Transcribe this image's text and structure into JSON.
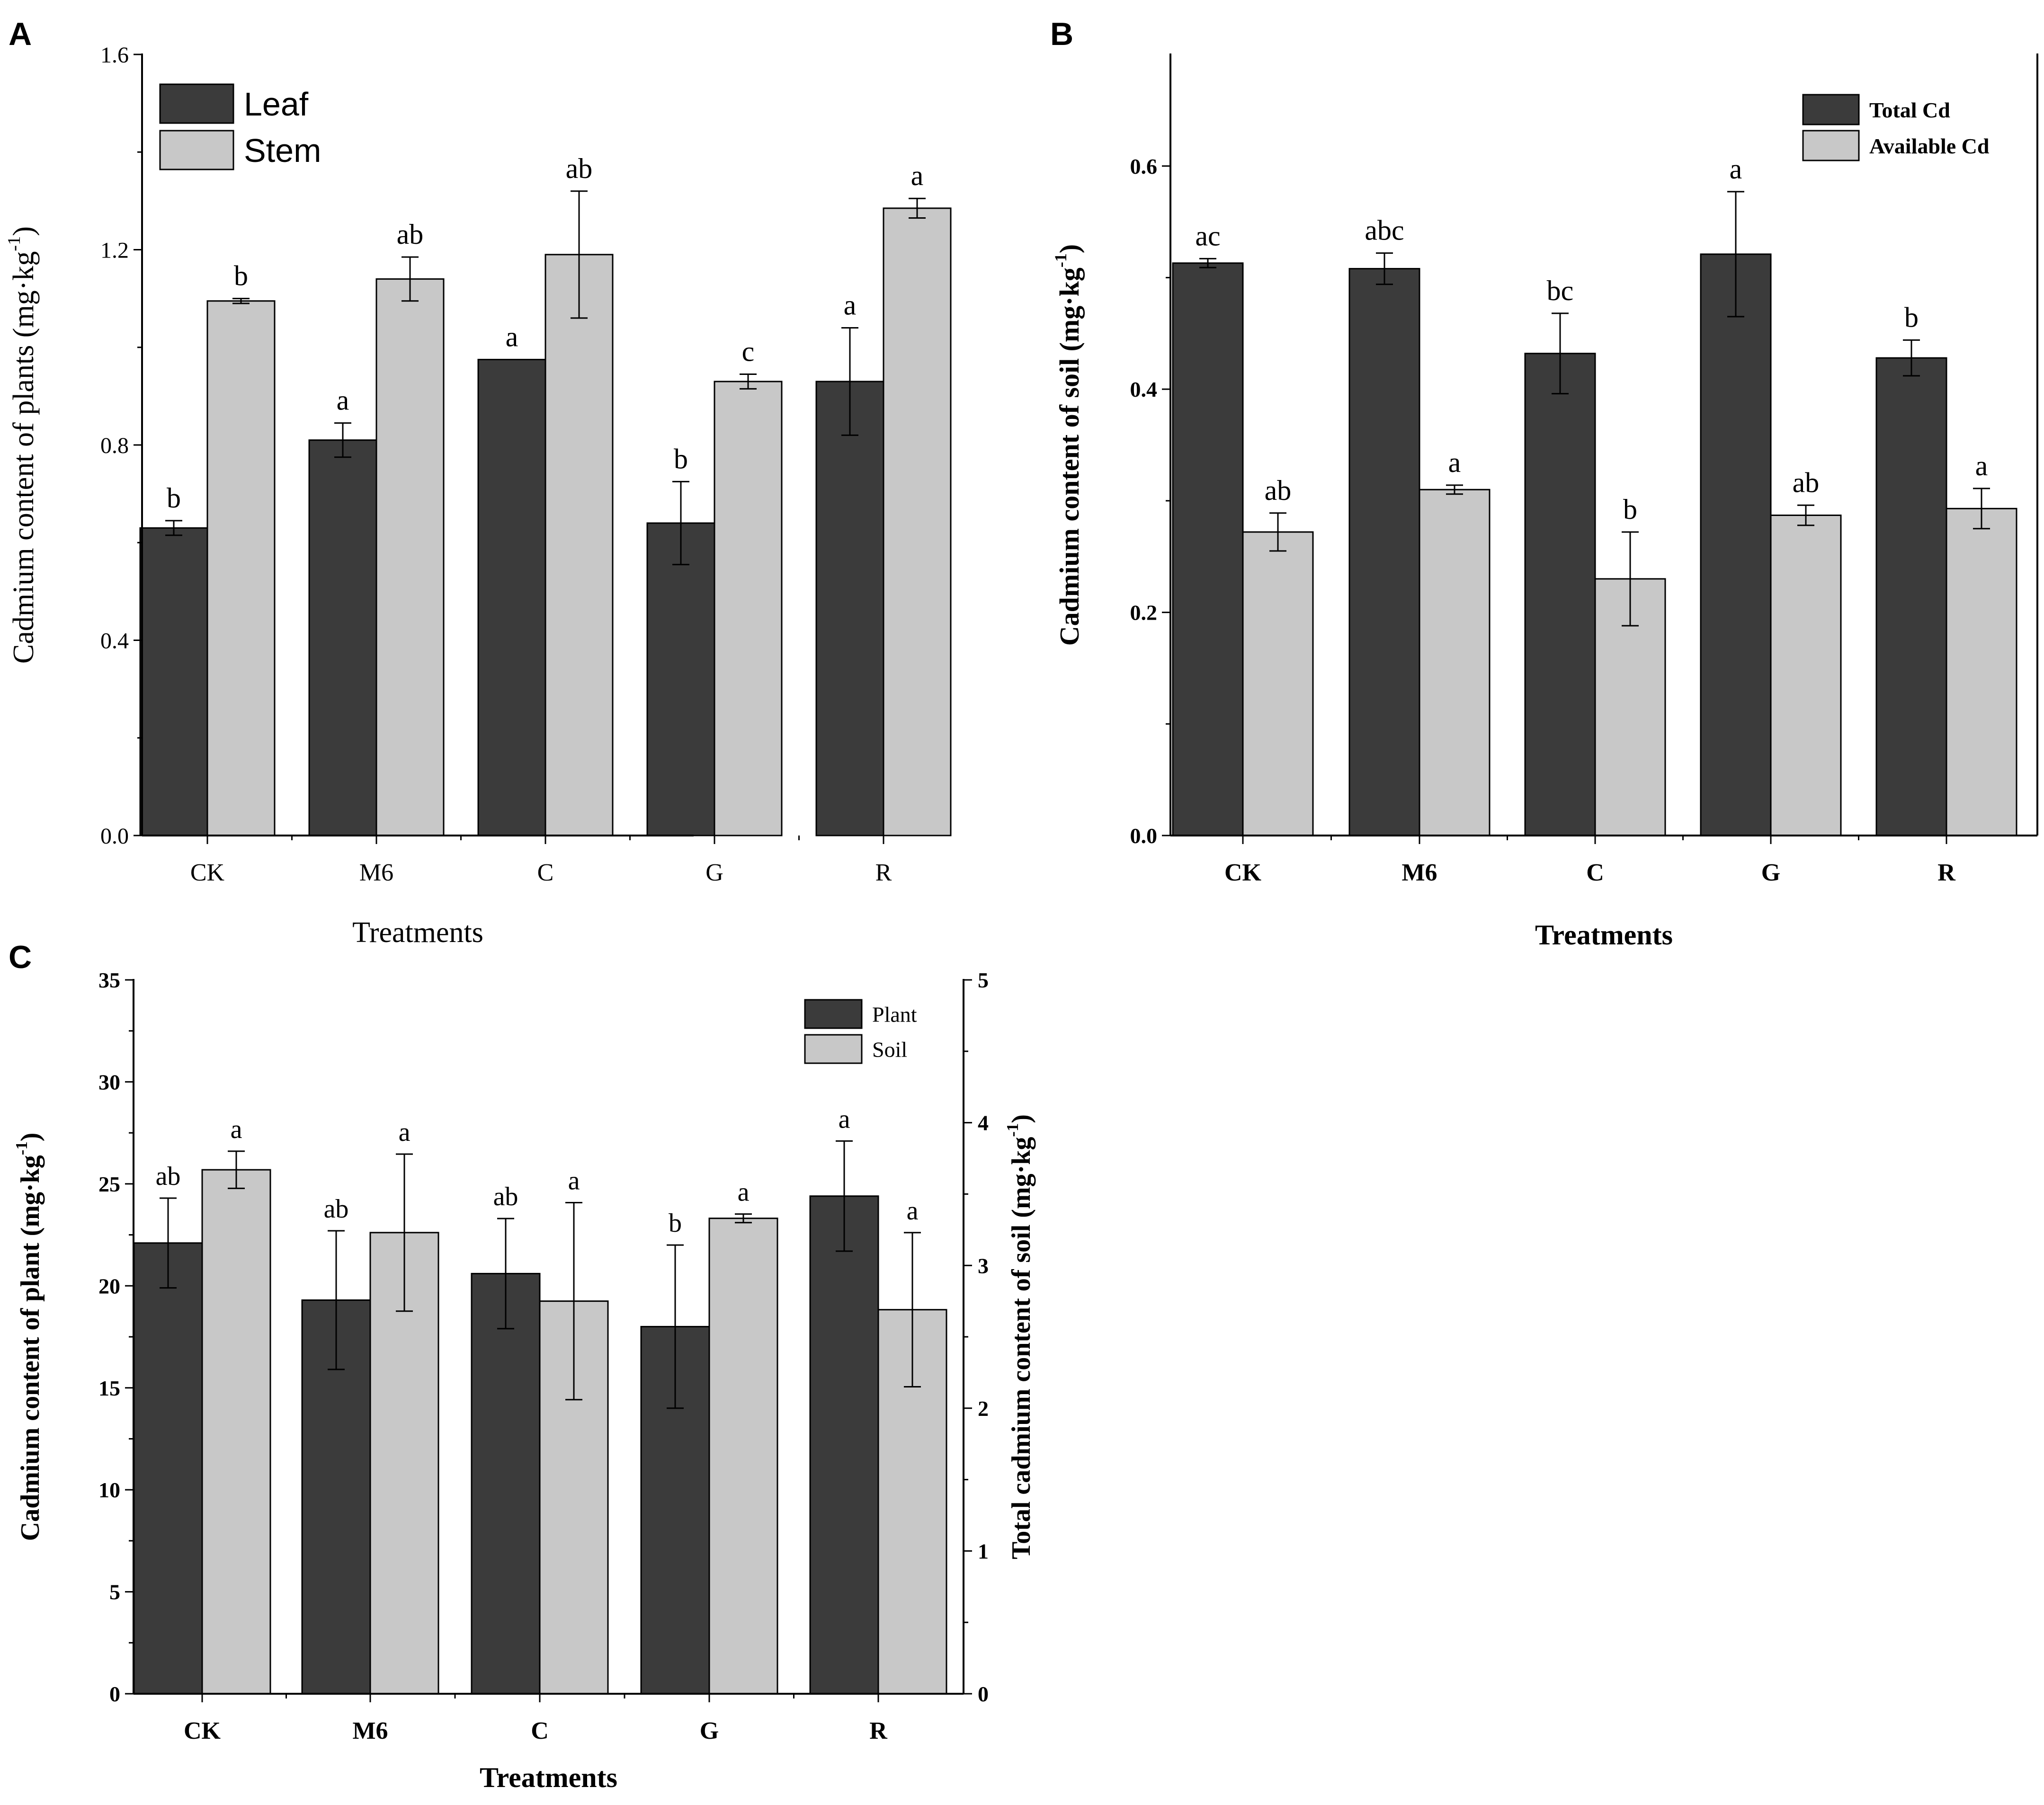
{
  "chart_data": [
    {
      "panel": "A",
      "type": "bar",
      "title": "",
      "categories": [
        "CK",
        "M6",
        "C",
        "G",
        "R"
      ],
      "series": [
        {
          "name": "Leaf",
          "color": "#3b3b3b",
          "values": [
            0.63,
            0.81,
            0.975,
            0.64,
            0.93
          ],
          "errors": [
            0.015,
            0.035,
            0.0,
            0.085,
            0.11
          ],
          "letters": [
            "b",
            "a",
            "a",
            "b",
            "a"
          ]
        },
        {
          "name": "Stem",
          "color": "#c8c8c8",
          "values": [
            1.095,
            1.14,
            1.19,
            0.93,
            1.285
          ],
          "errors": [
            0.005,
            0.045,
            0.13,
            0.015,
            0.02
          ],
          "letters": [
            "b",
            "ab",
            "ab",
            "c",
            "a"
          ]
        }
      ],
      "xlabel": "Treatments",
      "ylabel": "Cadmium content of plants (mg·kg",
      "ylabel_sup": "-1",
      "ylabel_end": ")",
      "ylim": [
        0,
        1.6
      ],
      "yticks": [
        0.0,
        0.4,
        0.8,
        1.2,
        1.6
      ],
      "ytick_labels": [
        "0.0",
        "0.4",
        "0.8",
        "1.2",
        "1.6"
      ],
      "legend": "top-left"
    },
    {
      "panel": "B",
      "type": "bar",
      "title": "",
      "categories": [
        "CK",
        "M6",
        "C",
        "G",
        "R"
      ],
      "series": [
        {
          "name": "Total Cd",
          "color": "#3b3b3b",
          "values": [
            0.513,
            0.508,
            0.432,
            0.521,
            0.428
          ],
          "errors": [
            0.004,
            0.014,
            0.036,
            0.056,
            0.016
          ],
          "letters": [
            "ac",
            "abc",
            "bc",
            "a",
            "b"
          ]
        },
        {
          "name": "Available Cd",
          "color": "#c8c8c8",
          "values": [
            0.272,
            0.31,
            0.23,
            0.287,
            0.293
          ],
          "errors": [
            0.017,
            0.004,
            0.042,
            0.009,
            0.018
          ],
          "letters": [
            "ab",
            "a",
            "b",
            "ab",
            "a"
          ]
        }
      ],
      "xlabel": "Treatments",
      "ylabel": "Cadmium content of soil (mg·kg",
      "ylabel_sup": "-1",
      "ylabel_end": ")",
      "ylim": [
        0,
        0.7
      ],
      "yticks": [
        0.0,
        0.2,
        0.4,
        0.6
      ],
      "ytick_labels": [
        "0.0",
        "0.2",
        "0.4",
        "0.6"
      ],
      "legend": "top-right"
    },
    {
      "panel": "C",
      "type": "bar",
      "title": "",
      "categories": [
        "CK",
        "M6",
        "C",
        "G",
        "R"
      ],
      "series": [
        {
          "name": "Plant",
          "axis": "left",
          "color": "#3b3b3b",
          "values": [
            22.1,
            19.3,
            20.6,
            18.0,
            24.4
          ],
          "errors": [
            2.2,
            3.4,
            2.7,
            4.0,
            2.7
          ],
          "letters": [
            "ab",
            "ab",
            "ab",
            "b",
            "a"
          ]
        },
        {
          "name": "Soil",
          "axis": "right",
          "color": "#c8c8c8",
          "values": [
            3.67,
            3.23,
            2.75,
            3.33,
            2.69
          ],
          "errors": [
            0.13,
            0.55,
            0.69,
            0.03,
            0.54
          ],
          "letters": [
            "a",
            "a",
            "a",
            "a",
            "a"
          ]
        }
      ],
      "xlabel": "Treatments",
      "ylabel": "Cadmium content of plant (mg·kg",
      "ylabel_sup": "-1",
      "ylabel_end": ")",
      "y2label": "Total cadmium content of soil (mg·kg",
      "y2label_sup": "-1",
      "y2label_end": ")",
      "ylim": [
        0,
        35
      ],
      "yticks": [
        0,
        5,
        10,
        15,
        20,
        25,
        30,
        35
      ],
      "ytick_labels": [
        "0",
        "5",
        "10",
        "15",
        "20",
        "25",
        "30",
        "35"
      ],
      "y2lim": [
        0,
        5
      ],
      "y2ticks": [
        0,
        1,
        2,
        3,
        4,
        5
      ],
      "y2tick_labels": [
        "0",
        "1",
        "2",
        "3",
        "4",
        "5"
      ],
      "legend": "top-right"
    }
  ]
}
